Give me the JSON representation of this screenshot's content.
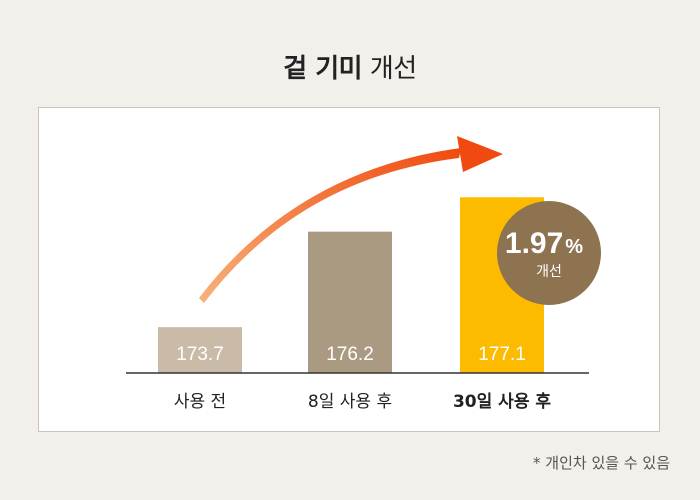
{
  "title_bold": "겉 기미",
  "title_normal": "개선",
  "footnote": "* 개인차 있을 수 있음",
  "badge": {
    "value": "1.97",
    "unit": "%",
    "label": "개선"
  },
  "colors": {
    "bar_before": "#c9bba8",
    "bar_8day": "#ab9a82",
    "bar_30day": "#fdbb00",
    "badge": "#8e7351",
    "arrow_start": "#f7b27a",
    "arrow_end": "#f04a10"
  },
  "chart_data": {
    "type": "bar",
    "categories": [
      "사용 전",
      "8일 사용 후",
      "30일 사용 후"
    ],
    "values": [
      173.7,
      176.2,
      177.1
    ],
    "value_labels": [
      "173.7",
      "176.2",
      "177.1"
    ],
    "highlight_index": 2,
    "title": "겉 기미 개선",
    "xlabel": "",
    "ylabel": "",
    "grid": false,
    "legend": "none"
  }
}
